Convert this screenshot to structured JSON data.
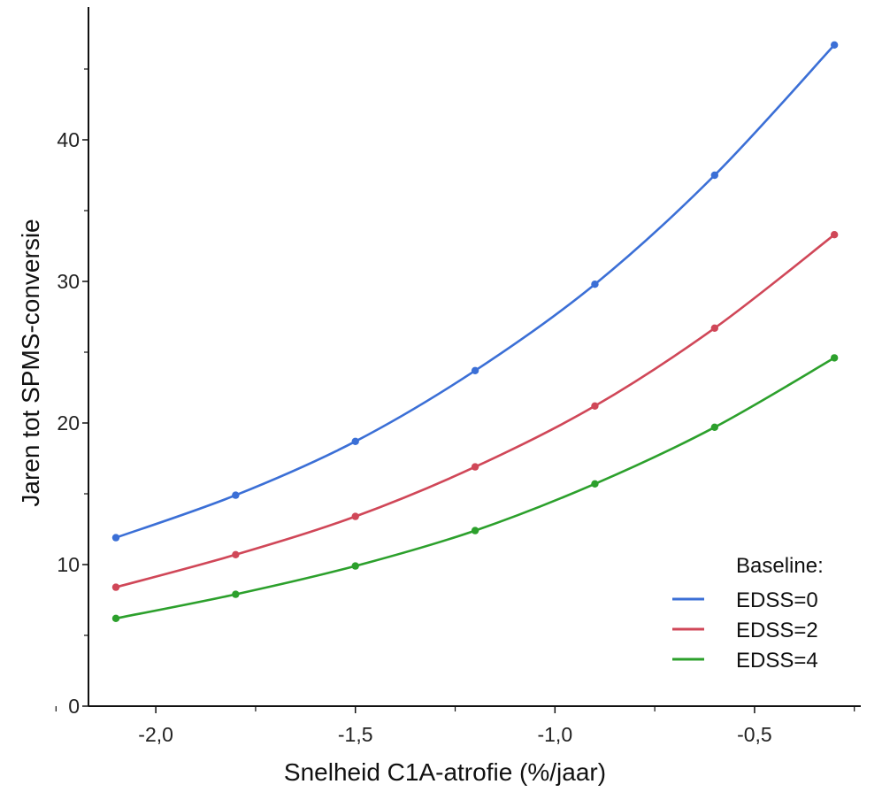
{
  "chart_data": {
    "type": "line",
    "xlabel": "Snelheid C1A-atrofie (%/jaar)",
    "ylabel": "Jaren tot SPMS-conversie",
    "xlim": [
      -2.2,
      -0.25
    ],
    "ylim": [
      0,
      49
    ],
    "x_ticks": [
      -2.0,
      -1.5,
      -1.0,
      -0.5
    ],
    "x_tick_labels": [
      "-2,0",
      "-1,5",
      "-1,0",
      "-0,5"
    ],
    "x_minor_ticks": [
      -2.25,
      -1.75,
      -1.25,
      -0.75,
      -0.25
    ],
    "y_ticks": [
      0,
      10,
      20,
      30,
      40
    ],
    "y_tick_labels": [
      "0",
      "10",
      "20",
      "30",
      "40"
    ],
    "y_minor_ticks": [
      5,
      15,
      25,
      35,
      45
    ],
    "x": [
      -2.1,
      -1.8,
      -1.5,
      -1.2,
      -0.9,
      -0.6,
      -0.3
    ],
    "series": [
      {
        "name": "EDSS=0",
        "color": "#3b6fd6",
        "values": [
          11.9,
          14.9,
          18.7,
          23.7,
          29.8,
          37.5,
          46.7
        ]
      },
      {
        "name": "EDSS=2",
        "color": "#d04758",
        "values": [
          8.4,
          10.7,
          13.4,
          16.9,
          21.2,
          26.7,
          33.3
        ]
      },
      {
        "name": "EDSS=4",
        "color": "#2ca02c",
        "values": [
          6.2,
          7.9,
          9.9,
          12.4,
          15.7,
          19.7,
          24.6
        ]
      }
    ],
    "legend": {
      "title": "Baseline:",
      "placement": "bottom-right"
    },
    "grid": false
  }
}
